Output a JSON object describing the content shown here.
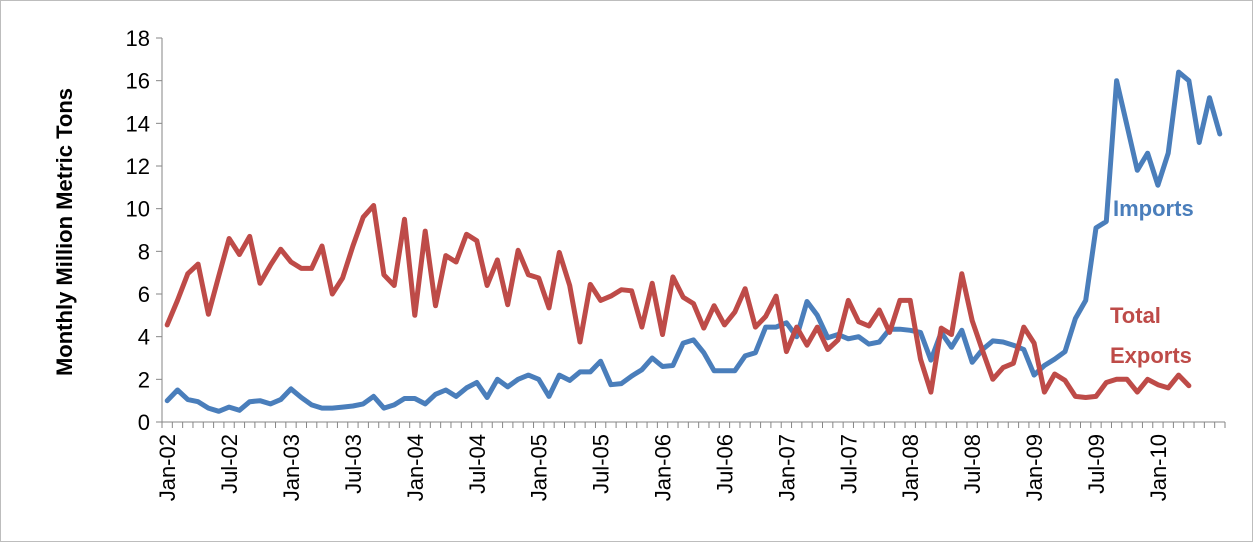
{
  "chart_data": {
    "type": "line",
    "title": "",
    "xlabel": "",
    "ylabel": "Monthly Million Metric Tons",
    "ylim": [
      0,
      18
    ],
    "yticks": [
      0,
      2,
      4,
      6,
      8,
      10,
      12,
      14,
      16,
      18
    ],
    "grid": false,
    "legend": "inline labels",
    "x_start": "Jan-02",
    "x_tick_labels": [
      "Jan-02",
      "Jul-02",
      "Jan-03",
      "Jul-03",
      "Jan-04",
      "Jul-04",
      "Jan-05",
      "Jul-05",
      "Jan-06",
      "Jul-06",
      "Jan-07",
      "Jul-07",
      "Jan-08",
      "Jul-08",
      "Jan-09",
      "Jul-09",
      "Jan-10"
    ],
    "series": [
      {
        "name": "Imports",
        "label_lines": [
          "Imports"
        ],
        "color": "#4a7ebb",
        "values": [
          1.0,
          1.5,
          1.05,
          0.95,
          0.65,
          0.5,
          0.7,
          0.55,
          0.95,
          1.0,
          0.85,
          1.05,
          1.55,
          1.15,
          0.8,
          0.65,
          0.65,
          0.7,
          0.75,
          0.85,
          1.2,
          0.65,
          0.8,
          1.1,
          1.1,
          0.85,
          1.3,
          1.5,
          1.2,
          1.6,
          1.85,
          1.15,
          2.0,
          1.65,
          2.0,
          2.2,
          2.0,
          1.2,
          2.2,
          1.95,
          2.35,
          2.35,
          2.85,
          1.75,
          1.8,
          2.15,
          2.45,
          3.0,
          2.6,
          2.65,
          3.7,
          3.85,
          3.25,
          2.4,
          2.4,
          2.4,
          3.1,
          3.25,
          4.45,
          4.45,
          4.65,
          4.0,
          5.65,
          5.0,
          3.95,
          4.1,
          3.9,
          4.0,
          3.65,
          3.75,
          4.35,
          4.35,
          4.3,
          4.2,
          2.9,
          4.2,
          3.5,
          4.3,
          2.8,
          3.4,
          3.8,
          3.75,
          3.6,
          3.4,
          2.2,
          2.65,
          2.95,
          3.3,
          4.85,
          5.7,
          9.1,
          9.4,
          16.0,
          13.9,
          11.8,
          12.6,
          11.1,
          12.6,
          16.4,
          16.0,
          13.1,
          15.2,
          13.5
        ]
      },
      {
        "name": "Total Exports",
        "label_lines": [
          "Total",
          "Exports"
        ],
        "color": "#be4b48",
        "values": [
          4.55,
          5.7,
          6.95,
          7.4,
          5.05,
          6.85,
          8.6,
          7.85,
          8.7,
          6.5,
          7.35,
          8.1,
          7.5,
          7.2,
          7.2,
          8.25,
          6.0,
          6.75,
          8.25,
          9.6,
          10.15,
          6.9,
          6.4,
          9.5,
          5.0,
          8.95,
          5.45,
          7.8,
          7.5,
          8.8,
          8.5,
          6.4,
          7.6,
          5.5,
          8.05,
          6.9,
          6.75,
          5.35,
          7.95,
          6.4,
          3.75,
          6.45,
          5.7,
          5.9,
          6.2,
          6.15,
          4.45,
          6.5,
          4.1,
          6.8,
          5.85,
          5.55,
          4.4,
          5.45,
          4.55,
          5.15,
          6.25,
          4.45,
          4.95,
          5.9,
          3.3,
          4.45,
          3.6,
          4.45,
          3.4,
          3.85,
          5.7,
          4.7,
          4.5,
          5.25,
          4.2,
          5.7,
          5.7,
          2.95,
          1.4,
          4.4,
          4.1,
          6.95,
          4.75,
          3.35,
          2.0,
          2.55,
          2.75,
          4.45,
          3.7,
          1.4,
          2.25,
          1.95,
          1.2,
          1.15,
          1.2,
          1.85,
          2.0,
          2.0,
          1.4,
          2.0,
          1.75,
          1.6,
          2.2,
          1.7
        ]
      }
    ]
  }
}
